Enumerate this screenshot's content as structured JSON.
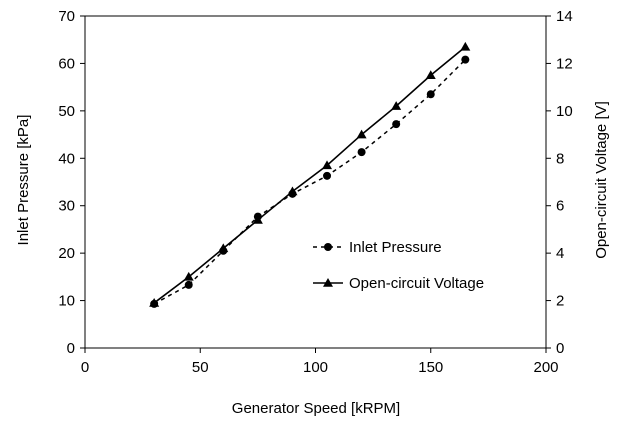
{
  "chart_data": {
    "type": "line",
    "xlabel": "Generator Speed [kRPM]",
    "ylabel": "Inlet Pressure [kPa]",
    "y2label": "Open-circuit Voltage [V]",
    "xlim": [
      0,
      200
    ],
    "ylim": [
      0,
      70
    ],
    "y2lim": [
      0,
      14
    ],
    "x_ticks": [
      "0",
      "50",
      "100",
      "150",
      "200"
    ],
    "y_ticks": [
      "0",
      "10",
      "20",
      "30",
      "40",
      "50",
      "60",
      "70"
    ],
    "y2_ticks": [
      "0",
      "2",
      "4",
      "6",
      "8",
      "10",
      "12",
      "14"
    ],
    "grid": false,
    "legend_position": "center-right",
    "series": [
      {
        "name": "Inlet Pressure",
        "axis": "left",
        "line_style": "dashed",
        "marker": "circle",
        "color": "#000000",
        "x": [
          30,
          45,
          60,
          75,
          90,
          105,
          120,
          135,
          150,
          165
        ],
        "values": [
          9.3,
          13.3,
          20.5,
          27.7,
          32.5,
          36.3,
          41.3,
          47.2,
          53.5,
          60.8
        ]
      },
      {
        "name": "Open-circuit Voltage",
        "axis": "right",
        "line_style": "solid",
        "marker": "triangle",
        "color": "#000000",
        "x": [
          30,
          45,
          60,
          75,
          90,
          105,
          120,
          135,
          150,
          165
        ],
        "values": [
          1.9,
          3.0,
          4.2,
          5.4,
          6.6,
          7.7,
          9.0,
          10.2,
          11.5,
          12.7
        ]
      }
    ]
  }
}
